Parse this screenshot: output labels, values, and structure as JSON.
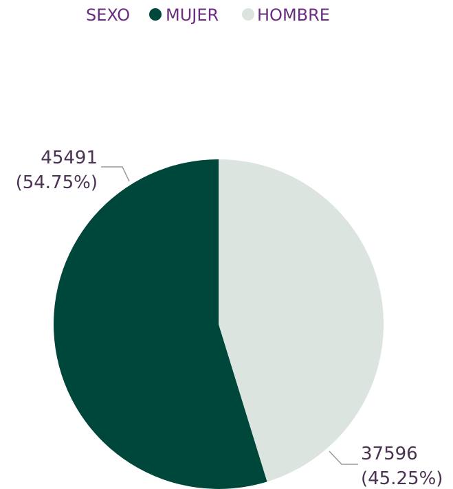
{
  "chart_data": {
    "type": "pie",
    "legend_title": "SEXO",
    "legend_position": "top",
    "slices": [
      {
        "name": "MUJER",
        "value": 45491,
        "percent_label": "(54.75%)",
        "color": "#00473b"
      },
      {
        "name": "HOMBRE",
        "value": 37596,
        "percent_label": "(45.25%)",
        "color": "#dce4df"
      }
    ],
    "colors": {
      "legend_text": "#6b2d82",
      "data_label_text": "#4a3252",
      "leader_line": "#9a9a9a"
    }
  }
}
